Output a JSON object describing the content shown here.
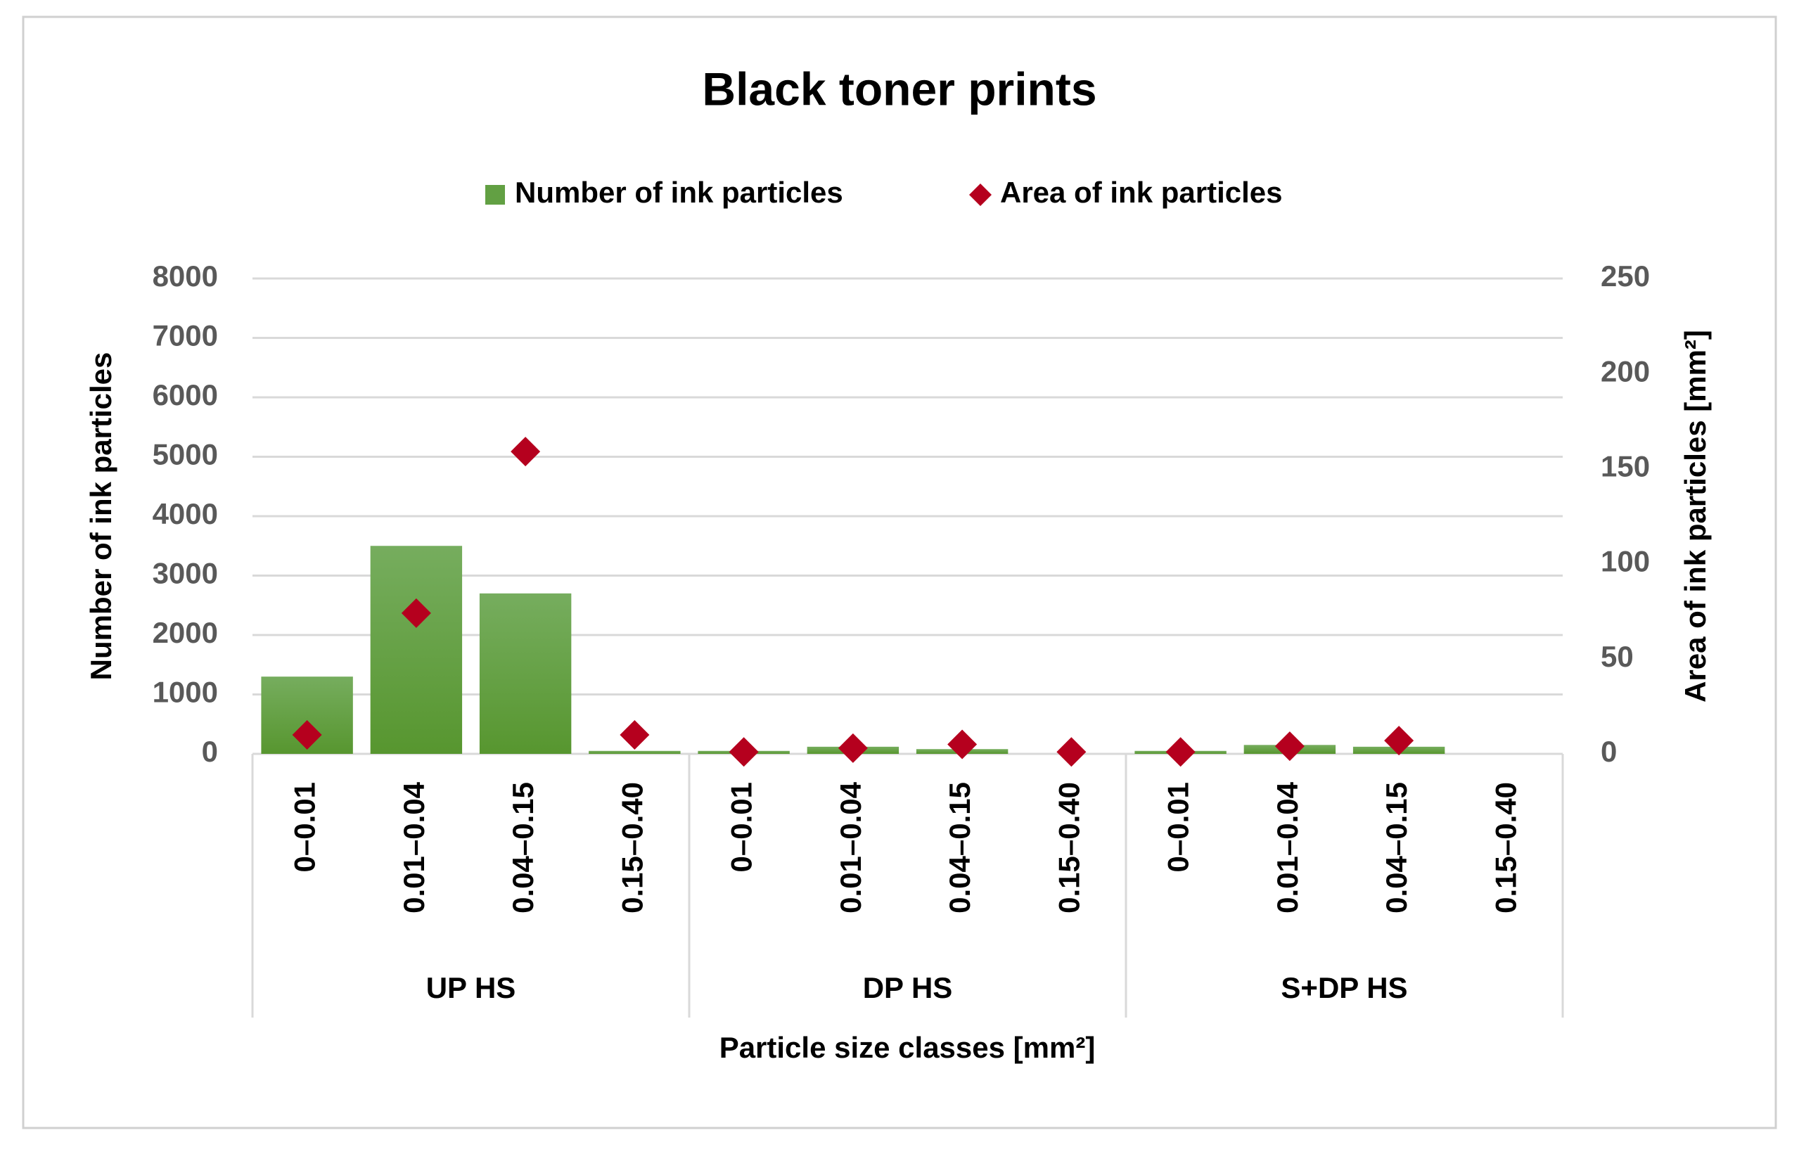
{
  "chart_data": {
    "type": "bar",
    "title": "Black toner prints",
    "categories": [
      "0–0.01",
      "0.01–0.04",
      "0.04–0.15",
      "0.15–0.40",
      "0–0.01",
      "0.01–0.04",
      "0.04–0.15",
      "0.15–0.40",
      "0–0.01",
      "0.01–0.04",
      "0.04–0.15",
      "0.15–0.40"
    ],
    "groups": [
      "UP HS",
      "DP HS",
      "S+DP HS"
    ],
    "x_label": "Particle size classes [mm²]",
    "y_label": "Number of ink particles",
    "y2_label": "Area of ink particles [mm²]",
    "series": [
      {
        "name": "Number of ink particles",
        "type": "bar",
        "color": "#62a043",
        "values": [
          1300,
          3500,
          2700,
          50,
          50,
          120,
          80,
          0,
          50,
          150,
          120,
          0
        ]
      },
      {
        "name": "Area of ink particles",
        "type": "scatter",
        "axis": "y2",
        "color": "#b5001e",
        "values": [
          10,
          74,
          159,
          10,
          1,
          3,
          5,
          1,
          1,
          4,
          7,
          null
        ]
      }
    ],
    "ylim": [
      0,
      8000
    ],
    "yticks": [
      0,
      1000,
      2000,
      3000,
      4000,
      5000,
      6000,
      7000,
      8000
    ],
    "y2lim": [
      0,
      250
    ],
    "y2ticks": [
      0,
      50,
      100,
      150,
      200,
      250
    ],
    "grid": true,
    "legend": "top"
  }
}
